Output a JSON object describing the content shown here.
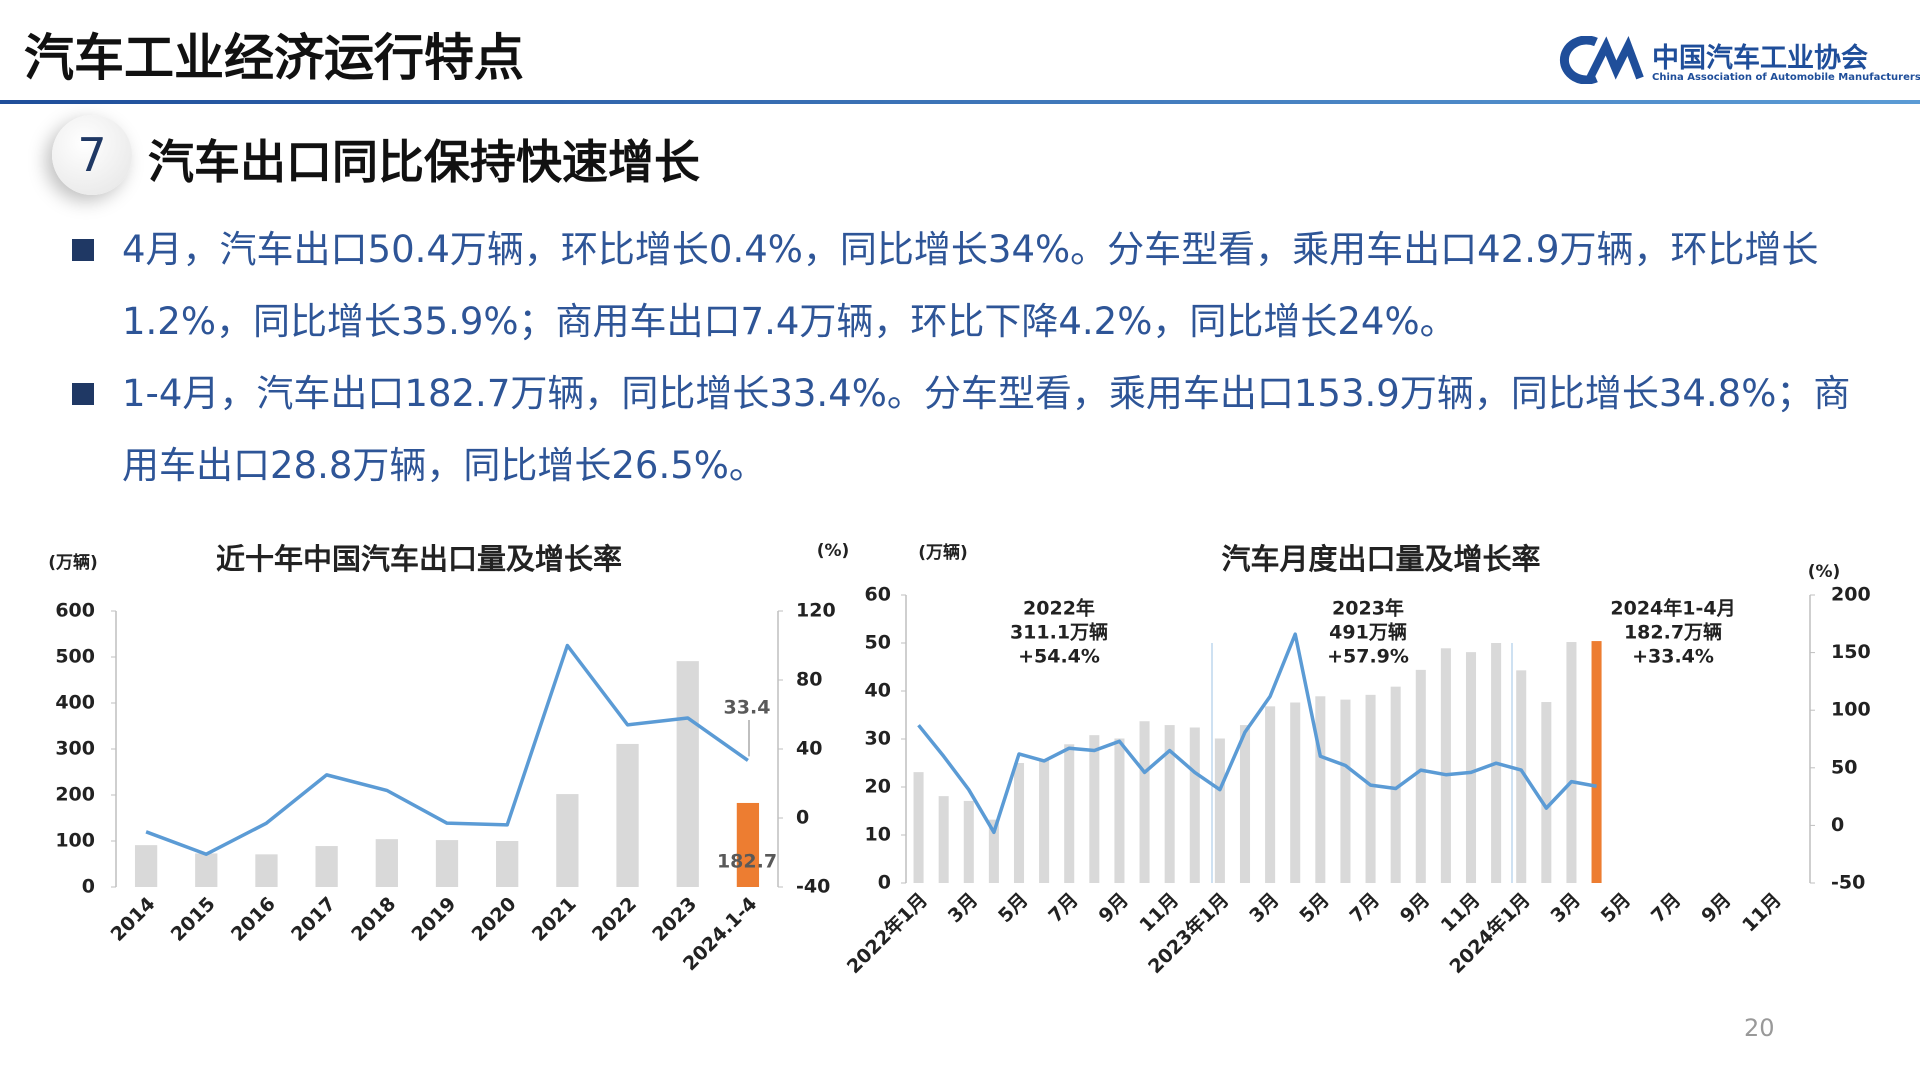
{
  "header": {
    "title": "汽车工业经济运行特点",
    "logo_cn": "中国汽车工业协会",
    "logo_en": "China Association of Automobile Manufacturers"
  },
  "section": {
    "number": "7",
    "title": "汽车出口同比保持快速增长"
  },
  "bullets": [
    "4月，汽车出口50.4万辆，环比增长0.4%，同比增长34%。分车型看，乘用车出口42.9万辆，环比增长1.2%，同比增长35.9%；商用车出口7.4万辆，环比下降4.2%，同比增长24%。",
    "1-4月，汽车出口182.7万辆，同比增长33.4%。分车型看，乘用车出口153.9万辆，同比增长34.8%；商用车出口28.8万辆，同比增长26.5%。"
  ],
  "page_number": "20",
  "chart_data": [
    {
      "type": "combo",
      "title": "近十年中国汽车出口量及增长率",
      "y_label": "(万辆)",
      "y2_label": "(%)",
      "categories": [
        "2014",
        "2015",
        "2016",
        "2017",
        "2018",
        "2019",
        "2020",
        "2021",
        "2022",
        "2023",
        "2024.1-4"
      ],
      "series": [
        {
          "type": "bar",
          "color": "#d9d9d9",
          "colors": [
            "#d9d9d9",
            "#d9d9d9",
            "#d9d9d9",
            "#d9d9d9",
            "#d9d9d9",
            "#d9d9d9",
            "#d9d9d9",
            "#d9d9d9",
            "#d9d9d9",
            "#d9d9d9",
            "#ed7d31"
          ],
          "values": [
            91,
            73,
            71,
            89,
            104,
            102,
            100,
            202,
            311,
            491,
            182.7
          ]
        },
        {
          "type": "line",
          "axis": "y2",
          "color": "#5b9bd5",
          "values": [
            -8,
            -21,
            -3,
            25,
            16,
            -3,
            -4,
            100,
            54,
            58,
            33.4
          ]
        }
      ],
      "ylim": [
        0,
        600
      ],
      "yticks": [
        0,
        100,
        200,
        300,
        400,
        500,
        600
      ],
      "y2lim": [
        -40,
        120
      ],
      "y2ticks": [
        -40,
        0,
        40,
        80,
        120
      ],
      "data_labels": [
        [
          0,
          10
        ],
        [
          1,
          10
        ]
      ]
    },
    {
      "type": "combo",
      "title": "汽车月度出口量及增长率",
      "y_label": "(万辆)",
      "y2_label": "(%)",
      "categories": [
        "2022年1月",
        null,
        "3月",
        null,
        "5月",
        null,
        "7月",
        null,
        "9月",
        null,
        "11月",
        null,
        "2023年1月",
        null,
        "3月",
        null,
        "5月",
        null,
        "7月",
        null,
        "9月",
        null,
        "11月",
        null,
        "2024年1月",
        null,
        "3月",
        null,
        "5月",
        null,
        "7月",
        null,
        "9月",
        null,
        "11月",
        null
      ],
      "series": [
        {
          "type": "bar",
          "color": "#d9d9d9",
          "colors": [
            "#d9d9d9",
            "#d9d9d9",
            "#d9d9d9",
            "#d9d9d9",
            "#d9d9d9",
            "#d9d9d9",
            "#d9d9d9",
            "#d9d9d9",
            "#d9d9d9",
            "#d9d9d9",
            "#d9d9d9",
            "#d9d9d9",
            "#d9d9d9",
            "#d9d9d9",
            "#d9d9d9",
            "#d9d9d9",
            "#d9d9d9",
            "#d9d9d9",
            "#d9d9d9",
            "#d9d9d9",
            "#d9d9d9",
            "#d9d9d9",
            "#d9d9d9",
            "#d9d9d9",
            "#d9d9d9",
            "#d9d9d9",
            "#d9d9d9",
            "#ed7d31",
            null,
            null,
            null,
            null,
            null,
            null,
            null,
            null
          ],
          "values": [
            23.1,
            18.1,
            17.1,
            13.2,
            25.0,
            25.6,
            28.9,
            30.8,
            30.1,
            33.7,
            32.9,
            32.4,
            30.1,
            32.9,
            36.8,
            37.6,
            38.9,
            38.2,
            39.2,
            40.9,
            44.4,
            48.9,
            48.1,
            50.0,
            44.3,
            37.7,
            50.2,
            50.4,
            null,
            null,
            null,
            null,
            null,
            null,
            null,
            null
          ]
        },
        {
          "type": "line",
          "axis": "y2",
          "color": "#5b9bd5",
          "values": [
            87,
            60,
            31,
            -6,
            62,
            56,
            67,
            65,
            73,
            46,
            65,
            46,
            31,
            81,
            112,
            166,
            60,
            52,
            35,
            32,
            48,
            44,
            46,
            54,
            48,
            15,
            38,
            34,
            null,
            null,
            null,
            null,
            null,
            null,
            null,
            null
          ]
        }
      ],
      "ylim": [
        0,
        60
      ],
      "yticks": [
        0,
        10,
        20,
        30,
        40,
        50,
        60
      ],
      "y2lim": [
        -50,
        200
      ],
      "y2ticks": [
        -50,
        0,
        50,
        100,
        150,
        200
      ],
      "annotations": [
        [
          "2022年",
          "311.1万辆",
          "+54.4%"
        ],
        [
          "2023年",
          "491万辆",
          "+57.9%"
        ],
        [
          "2024年1-4月",
          "182.7万辆",
          "+33.4%"
        ]
      ]
    }
  ]
}
